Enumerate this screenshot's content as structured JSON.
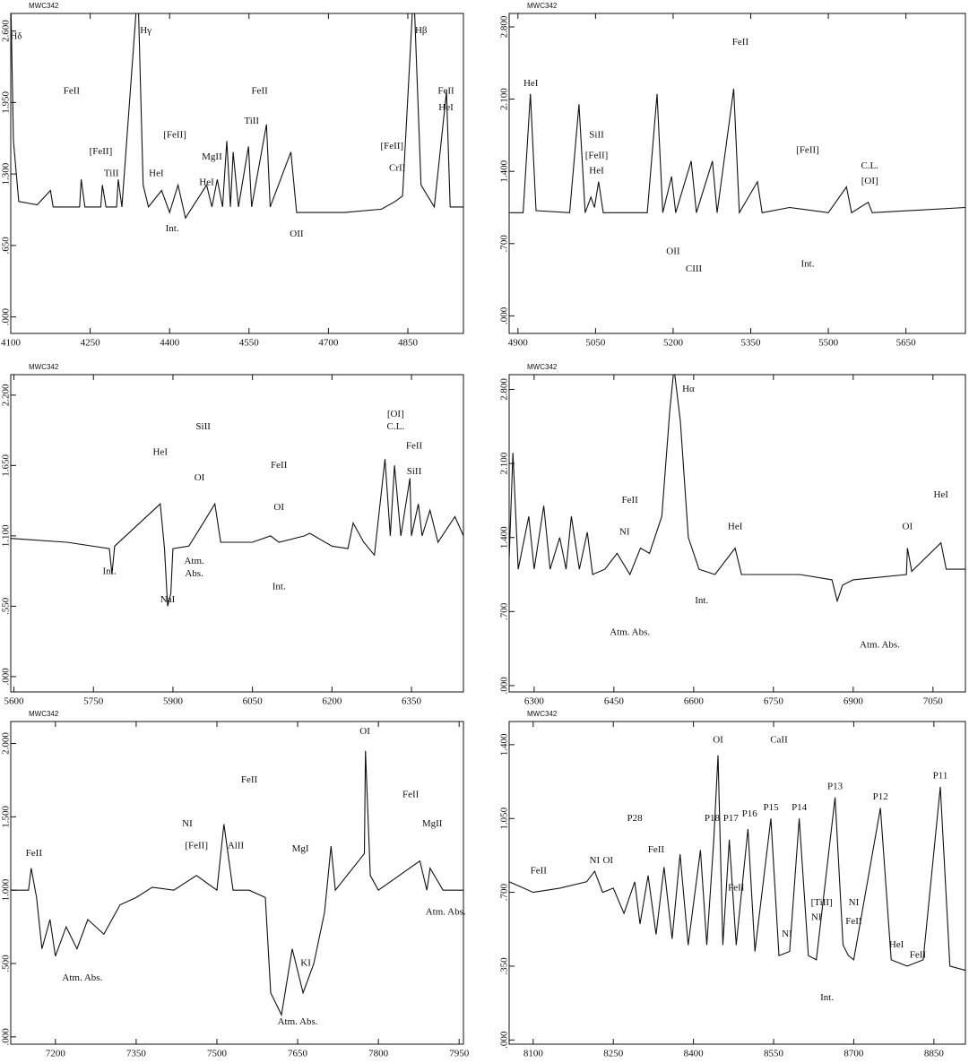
{
  "chart_data": [
    {
      "type": "line",
      "title": "MWC342",
      "x": [
        4100,
        4105,
        4115,
        4150,
        4175,
        4180,
        4230,
        4233,
        4240,
        4270,
        4273,
        4280,
        4300,
        4303,
        4310,
        4340,
        4350,
        4360,
        4385,
        4400,
        4416,
        4430,
        4470,
        4480,
        4490,
        4500,
        4508,
        4515,
        4520,
        4530,
        4549,
        4555,
        4583,
        4590,
        4629,
        4640,
        4700,
        4730,
        4800,
        4826,
        4840,
        4861,
        4875,
        4900,
        4923,
        4930,
        4955
      ],
      "values": [
        2.9,
        1.6,
        1.05,
        1.02,
        1.15,
        1.0,
        1.0,
        1.25,
        1.0,
        1.0,
        1.2,
        1.0,
        1.0,
        1.25,
        1.0,
        3.0,
        1.2,
        1.0,
        1.15,
        0.95,
        1.2,
        0.9,
        1.2,
        1.0,
        1.25,
        1.0,
        1.6,
        1.0,
        1.5,
        1.0,
        1.55,
        1.0,
        1.75,
        1.0,
        1.5,
        0.95,
        0.95,
        0.95,
        0.98,
        1.05,
        1.1,
        3.0,
        1.2,
        1.0,
        2.05,
        1.0,
        1.0
      ],
      "xlim": [
        4100,
        4955
      ],
      "xticks": [
        4100,
        4250,
        4400,
        4550,
        4700,
        4850
      ],
      "ylim": [
        -0.15,
        2.76
      ],
      "yticks": [
        {
          "value": 0,
          "label": ".000"
        },
        {
          "value": 0.65,
          "label": ".650"
        },
        {
          "value": 1.3,
          "label": "1.300"
        },
        {
          "value": 1.95,
          "label": "1.950"
        },
        {
          "value": 2.6,
          "label": "2.600"
        }
      ],
      "annotations": [
        {
          "text": "Hδ",
          "x": 4110,
          "y": 2.55
        },
        {
          "text": "Hγ",
          "x": 4355,
          "y": 2.6
        },
        {
          "text": "Hβ",
          "x": 4875,
          "y": 2.6
        },
        {
          "text": "FeII",
          "x": 4215,
          "y": 2.05
        },
        {
          "text": "FeII",
          "x": 4570,
          "y": 2.05
        },
        {
          "text": "FeII",
          "x": 4922,
          "y": 2.05
        },
        {
          "text": "HeI",
          "x": 4922,
          "y": 1.9
        },
        {
          "text": "[FeII]",
          "x": 4410,
          "y": 1.65
        },
        {
          "text": "[FeII]",
          "x": 4270,
          "y": 1.5
        },
        {
          "text": "TiII",
          "x": 4290,
          "y": 1.3
        },
        {
          "text": "MgII",
          "x": 4480,
          "y": 1.45
        },
        {
          "text": "HeI",
          "x": 4375,
          "y": 1.3
        },
        {
          "text": "HeI",
          "x": 4470,
          "y": 1.22
        },
        {
          "text": "TiII",
          "x": 4555,
          "y": 1.78
        },
        {
          "text": "[FeII]",
          "x": 4820,
          "y": 1.55
        },
        {
          "text": "CrII",
          "x": 4830,
          "y": 1.35
        },
        {
          "text": "OII",
          "x": 4640,
          "y": 0.75
        },
        {
          "text": "Int.",
          "x": 4405,
          "y": 0.8
        }
      ]
    },
    {
      "type": "line",
      "title": "MWC342",
      "x": [
        4883,
        4910,
        4924,
        4935,
        5000,
        5018,
        5030,
        5041,
        5048,
        5056,
        5065,
        5100,
        5150,
        5169,
        5180,
        5197,
        5205,
        5235,
        5245,
        5276,
        5285,
        5317,
        5328,
        5363,
        5372,
        5425,
        5500,
        5535,
        5545,
        5577,
        5585,
        5765
      ],
      "values": [
        1.0,
        1.0,
        2.15,
        1.02,
        1.0,
        2.05,
        1.0,
        1.15,
        1.05,
        1.3,
        1.0,
        1.0,
        1.0,
        2.15,
        1.0,
        1.35,
        1.0,
        1.5,
        1.0,
        1.5,
        1.0,
        2.2,
        1.0,
        1.3,
        1.0,
        1.05,
        1.0,
        1.25,
        1.0,
        1.1,
        1.0,
        1.05
      ],
      "xlim": [
        4883,
        5765
      ],
      "xticks": [
        4900,
        5050,
        5200,
        5350,
        5500,
        5650
      ],
      "ylim": [
        -0.17,
        2.93
      ],
      "yticks": [
        {
          "value": 0,
          "label": ".000"
        },
        {
          "value": 0.7,
          "label": ".700"
        },
        {
          "value": 1.4,
          "label": "1.400"
        },
        {
          "value": 2.1,
          "label": "2.100"
        },
        {
          "value": 2.8,
          "label": "2.800"
        }
      ],
      "annotations": [
        {
          "text": "FeII",
          "x": 5330,
          "y": 2.65
        },
        {
          "text": "HeI",
          "x": 4925,
          "y": 2.25
        },
        {
          "text": "SiII",
          "x": 5052,
          "y": 1.75
        },
        {
          "text": "[FeII]",
          "x": 5052,
          "y": 1.55
        },
        {
          "text": "HeI",
          "x": 5052,
          "y": 1.4
        },
        {
          "text": "[FeII]",
          "x": 5460,
          "y": 1.6
        },
        {
          "text": "C.L.",
          "x": 5580,
          "y": 1.45
        },
        {
          "text": "[OI]",
          "x": 5580,
          "y": 1.3
        },
        {
          "text": "OII",
          "x": 5200,
          "y": 0.62
        },
        {
          "text": "CIII",
          "x": 5240,
          "y": 0.45
        },
        {
          "text": "Int.",
          "x": 5460,
          "y": 0.5
        }
      ]
    },
    {
      "type": "line",
      "title": "MWC342",
      "x": [
        5594,
        5700,
        5780,
        5785,
        5790,
        5876,
        5884,
        5890,
        5896,
        5900,
        5930,
        5957,
        5979,
        5990,
        6050,
        6084,
        6100,
        6148,
        6158,
        6200,
        6230,
        6240,
        6260,
        6280,
        6300,
        6310,
        6318,
        6330,
        6347,
        6350,
        6363,
        6370,
        6385,
        6400,
        6432,
        6448
      ],
      "values": [
        1.08,
        1.05,
        1.0,
        0.8,
        1.02,
        1.35,
        1.0,
        0.55,
        0.65,
        1.0,
        1.02,
        1.2,
        1.35,
        1.05,
        1.05,
        1.1,
        1.05,
        1.1,
        1.12,
        1.02,
        1.0,
        1.2,
        1.05,
        0.95,
        1.7,
        1.1,
        1.65,
        1.1,
        1.55,
        1.1,
        1.35,
        1.1,
        1.3,
        1.05,
        1.25,
        1.1
      ],
      "xlim": [
        5594,
        6448
      ],
      "xticks": [
        5600,
        5750,
        5900,
        6050,
        6200,
        6350
      ],
      "ylim": [
        -0.12,
        2.36
      ],
      "yticks": [
        {
          "value": 0,
          "label": ".000"
        },
        {
          "value": 0.55,
          "label": ".550"
        },
        {
          "value": 1.1,
          "label": "1.100"
        },
        {
          "value": 1.65,
          "label": "1.650"
        },
        {
          "value": 2.2,
          "label": "2.200"
        }
      ],
      "annotations": [
        {
          "text": "HeI",
          "x": 5876,
          "y": 1.75
        },
        {
          "text": "SiII",
          "x": 5957,
          "y": 1.95
        },
        {
          "text": "OI",
          "x": 5950,
          "y": 1.55
        },
        {
          "text": "FeII",
          "x": 6100,
          "y": 1.65
        },
        {
          "text": "OI",
          "x": 6100,
          "y": 1.32
        },
        {
          "text": "[OI]",
          "x": 6320,
          "y": 2.05
        },
        {
          "text": "C.L.",
          "x": 6320,
          "y": 1.95
        },
        {
          "text": "FeII",
          "x": 6355,
          "y": 1.8
        },
        {
          "text": "SiII",
          "x": 6355,
          "y": 1.6
        },
        {
          "text": "Int.",
          "x": 5780,
          "y": 0.82
        },
        {
          "text": "NaI",
          "x": 5890,
          "y": 0.6
        },
        {
          "text": "Atm.",
          "x": 5940,
          "y": 0.9
        },
        {
          "text": "Abs.",
          "x": 5940,
          "y": 0.8
        },
        {
          "text": "Int.",
          "x": 6100,
          "y": 0.7
        }
      ]
    },
    {
      "type": "line",
      "title": "MWC342",
      "x": [
        6253,
        6260,
        6270,
        6290,
        6300,
        6318,
        6330,
        6348,
        6360,
        6370,
        6385,
        6400,
        6410,
        6433,
        6456,
        6480,
        6500,
        6517,
        6540,
        6555,
        6563,
        6575,
        6590,
        6610,
        6640,
        6678,
        6690,
        6800,
        6860,
        6870,
        6880,
        6900,
        7000,
        7002,
        7010,
        7065,
        7075,
        7111
      ],
      "values": [
        1.2,
        2.2,
        1.1,
        1.6,
        1.1,
        1.7,
        1.1,
        1.4,
        1.1,
        1.6,
        1.1,
        1.45,
        1.05,
        1.1,
        1.25,
        1.05,
        1.3,
        1.25,
        1.6,
        2.6,
        3.0,
        2.5,
        1.4,
        1.1,
        1.05,
        1.3,
        1.05,
        1.05,
        1.0,
        0.8,
        0.95,
        1.0,
        1.05,
        1.3,
        1.08,
        1.35,
        1.1,
        1.1
      ],
      "xlim": [
        6253,
        7111
      ],
      "xticks": [
        6300,
        6450,
        6600,
        6750,
        6900,
        7050
      ],
      "ylim": [
        -0.06,
        2.94
      ],
      "yticks": [
        {
          "value": 0,
          "label": ".000"
        },
        {
          "value": 0.7,
          "label": ".700"
        },
        {
          "value": 1.4,
          "label": "1.400"
        },
        {
          "value": 2.1,
          "label": "2.100"
        },
        {
          "value": 2.8,
          "label": "2.800"
        }
      ],
      "annotations": [
        {
          "text": "Hα",
          "x": 6590,
          "y": 2.8
        },
        {
          "text": "FeII",
          "x": 6480,
          "y": 1.75
        },
        {
          "text": "NI",
          "x": 6470,
          "y": 1.45
        },
        {
          "text": "HeI",
          "x": 6678,
          "y": 1.5
        },
        {
          "text": "OI",
          "x": 7002,
          "y": 1.5
        },
        {
          "text": "HeI",
          "x": 7065,
          "y": 1.8
        },
        {
          "text": "Atm. Abs.",
          "x": 6480,
          "y": 0.5
        },
        {
          "text": "Int.",
          "x": 6615,
          "y": 0.8
        },
        {
          "text": "Atm. Abs.",
          "x": 6950,
          "y": 0.38
        }
      ]
    },
    {
      "type": "line",
      "title": "MWC342",
      "x": [
        7117,
        7150,
        7155,
        7165,
        7175,
        7190,
        7200,
        7220,
        7240,
        7260,
        7290,
        7320,
        7350,
        7380,
        7420,
        7462,
        7500,
        7513,
        7530,
        7560,
        7590,
        7600,
        7620,
        7640,
        7660,
        7680,
        7700,
        7712,
        7720,
        7774,
        7776,
        7785,
        7800,
        7877,
        7890,
        7896,
        7920,
        7958
      ],
      "values": [
        1.0,
        1.0,
        1.15,
        0.95,
        0.6,
        0.8,
        0.55,
        0.75,
        0.6,
        0.8,
        0.7,
        0.9,
        0.95,
        1.02,
        1.0,
        1.1,
        1.0,
        1.45,
        1.0,
        1.0,
        0.95,
        0.3,
        0.15,
        0.6,
        0.3,
        0.5,
        0.85,
        1.3,
        1.0,
        1.25,
        1.95,
        1.1,
        1.0,
        1.2,
        1.0,
        1.15,
        1.0,
        1.0
      ],
      "xlim": [
        7117,
        7958
      ],
      "xticks": [
        7200,
        7350,
        7500,
        7650,
        7800,
        7950
      ],
      "ylim": [
        -0.05,
        2.15
      ],
      "yticks": [
        {
          "value": 0,
          "label": ".000"
        },
        {
          "value": 0.5,
          "label": ".500"
        },
        {
          "value": 1.0,
          "label": "1.000"
        },
        {
          "value": 1.5,
          "label": "1.500"
        },
        {
          "value": 2.0,
          "label": "2.000"
        }
      ],
      "annotations": [
        {
          "text": "FeII",
          "x": 7160,
          "y": 1.25
        },
        {
          "text": "FeII",
          "x": 7560,
          "y": 1.75
        },
        {
          "text": "FeII",
          "x": 7860,
          "y": 1.65
        },
        {
          "text": "[FeII]",
          "x": 7462,
          "y": 1.3
        },
        {
          "text": "NI",
          "x": 7445,
          "y": 1.45
        },
        {
          "text": "AlII",
          "x": 7535,
          "y": 1.3
        },
        {
          "text": "MgI",
          "x": 7655,
          "y": 1.28
        },
        {
          "text": "OI",
          "x": 7775,
          "y": 2.08
        },
        {
          "text": "MgII",
          "x": 7900,
          "y": 1.45
        },
        {
          "text": "KI",
          "x": 7665,
          "y": 0.5
        },
        {
          "text": "Atm. Abs.",
          "x": 7250,
          "y": 0.4
        },
        {
          "text": "Atm. Abs.",
          "x": 7650,
          "y": 0.1
        },
        {
          "text": "Atm. Abs.",
          "x": 7925,
          "y": 0.85
        }
      ]
    },
    {
      "type": "line",
      "title": "MWC342",
      "x": [
        8055,
        8100,
        8150,
        8200,
        8215,
        8230,
        8250,
        8270,
        8290,
        8300,
        8315,
        8330,
        8345,
        8360,
        8375,
        8390,
        8413,
        8425,
        8438,
        8446,
        8455,
        8467,
        8480,
        8502,
        8515,
        8545,
        8560,
        8580,
        8598,
        8615,
        8630,
        8665,
        8680,
        8690,
        8700,
        8750,
        8770,
        8800,
        8830,
        8862,
        8880,
        8909
      ],
      "values": [
        0.75,
        0.7,
        0.72,
        0.75,
        0.8,
        0.7,
        0.72,
        0.6,
        0.75,
        0.55,
        0.78,
        0.5,
        0.82,
        0.48,
        0.88,
        0.45,
        0.9,
        0.45,
        0.95,
        1.35,
        0.45,
        0.95,
        0.45,
        1.0,
        0.42,
        1.05,
        0.4,
        0.42,
        1.05,
        0.4,
        0.38,
        1.15,
        0.45,
        0.4,
        0.38,
        1.1,
        0.38,
        0.35,
        0.38,
        1.2,
        0.35,
        0.33
      ],
      "xlim": [
        8055,
        8909
      ],
      "xticks": [
        8100,
        8250,
        8400,
        8550,
        8700,
        8850
      ],
      "ylim": [
        -0.02,
        1.51
      ],
      "yticks": [
        {
          "value": 0,
          "label": ".000"
        },
        {
          "value": 0.35,
          "label": ".350"
        },
        {
          "value": 0.7,
          "label": ".700"
        },
        {
          "value": 1.05,
          "label": "1.050"
        },
        {
          "value": 1.4,
          "label": "1.400"
        }
      ],
      "annotations": [
        {
          "text": "CaII",
          "x": 8560,
          "y": 1.42
        },
        {
          "text": "OI",
          "x": 8446,
          "y": 1.42
        },
        {
          "text": "P13",
          "x": 8665,
          "y": 1.2
        },
        {
          "text": "P12",
          "x": 8750,
          "y": 1.15
        },
        {
          "text": "P11",
          "x": 8862,
          "y": 1.25
        },
        {
          "text": "P14",
          "x": 8598,
          "y": 1.1
        },
        {
          "text": "P15",
          "x": 8545,
          "y": 1.1
        },
        {
          "text": "P16",
          "x": 8505,
          "y": 1.07
        },
        {
          "text": "P17",
          "x": 8470,
          "y": 1.05
        },
        {
          "text": "P18",
          "x": 8435,
          "y": 1.05
        },
        {
          "text": "P28",
          "x": 8290,
          "y": 1.05
        },
        {
          "text": "FeII",
          "x": 8330,
          "y": 0.9
        },
        {
          "text": "FeII",
          "x": 8110,
          "y": 0.8
        },
        {
          "text": "NI",
          "x": 8215,
          "y": 0.85
        },
        {
          "text": "OI",
          "x": 8240,
          "y": 0.85
        },
        {
          "text": "FeII",
          "x": 8480,
          "y": 0.72
        },
        {
          "text": "[TiII]",
          "x": 8640,
          "y": 0.65
        },
        {
          "text": "NI",
          "x": 8630,
          "y": 0.58
        },
        {
          "text": "NI",
          "x": 8575,
          "y": 0.5
        },
        {
          "text": "NI",
          "x": 8700,
          "y": 0.65
        },
        {
          "text": "FeII",
          "x": 8700,
          "y": 0.56
        },
        {
          "text": "HeI",
          "x": 8780,
          "y": 0.45
        },
        {
          "text": "FeII",
          "x": 8820,
          "y": 0.4
        },
        {
          "text": "Int.",
          "x": 8650,
          "y": 0.2
        }
      ]
    }
  ]
}
